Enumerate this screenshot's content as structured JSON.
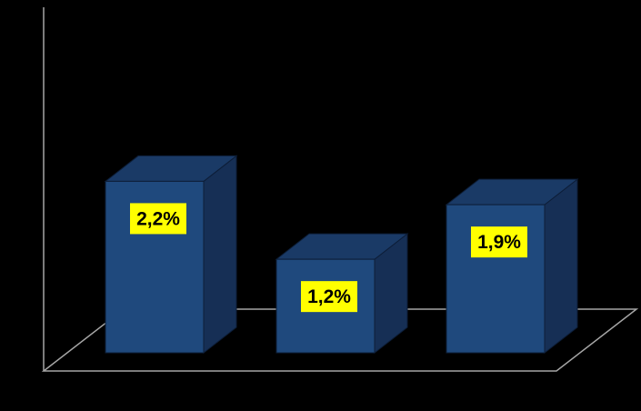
{
  "chart_data": {
    "type": "bar",
    "categories": [
      "",
      "",
      ""
    ],
    "values": [
      2.2,
      1.2,
      1.9
    ],
    "data_labels": [
      "2,2%",
      "1,2%",
      "1,9%"
    ],
    "title": "",
    "xlabel": "",
    "ylabel": "",
    "ylim": [
      0,
      3.5
    ],
    "grid": false,
    "legend": "none",
    "style": "3d-column",
    "colors": {
      "background": "#000000",
      "bar_front": "#1f497d",
      "bar_side": "#162f55",
      "bar_top": "#1a3a66",
      "bar_edge": "#0d1e38",
      "axis": "#a6a6a6",
      "label_bg": "#ffff00",
      "label_text": "#000000"
    }
  }
}
